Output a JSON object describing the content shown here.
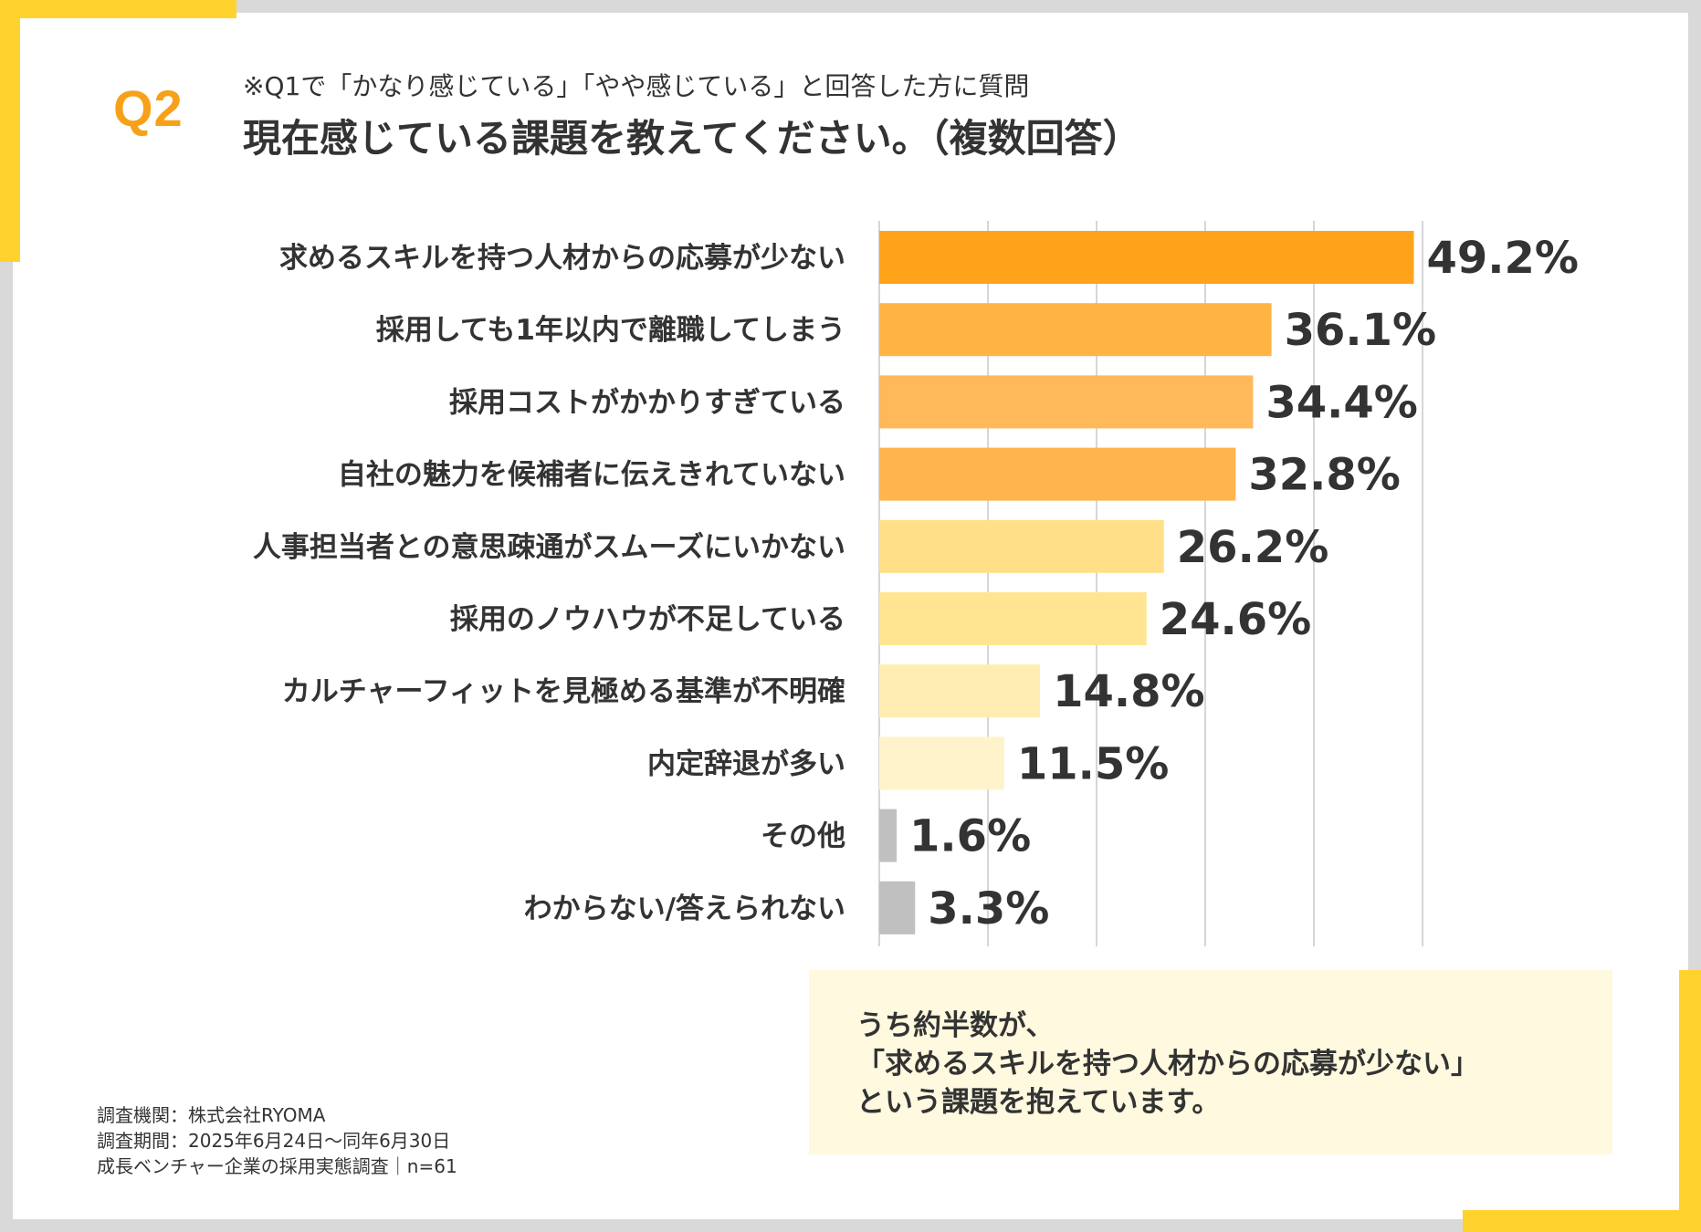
{
  "header": {
    "q_label": "Q2",
    "note": "※Q1で「かなり感じている」「やや感じている」と回答した方に質問",
    "title": "現在感じている課題を教えてください。（複数回答）"
  },
  "colors": {
    "accent_yellow": "#ffd22e",
    "q_orange": "#f7a11a",
    "callout_bg": "#fff9df",
    "grid": "#d6d6d6"
  },
  "chart_data": {
    "type": "bar",
    "orientation": "horizontal",
    "title": "現在感じている課題を教えてください。（複数回答）",
    "categories": [
      "求めるスキルを持つ人材からの応募が少ない",
      "採用しても1年以内で離職してしまう",
      "採用コストがかかりすぎている",
      "自社の魅力を候補者に伝えきれていない",
      "人事担当者との意思疎通がスムーズにいかない",
      "採用のノウハウが不足している",
      "カルチャーフィットを見極める基準が不明確",
      "内定辞退が多い",
      "その他",
      "わからない/答えられない"
    ],
    "values": [
      49.2,
      36.1,
      34.4,
      32.8,
      26.2,
      24.6,
      14.8,
      11.5,
      1.6,
      3.3
    ],
    "value_labels": [
      "49.2%",
      "36.1%",
      "34.4%",
      "32.8%",
      "26.2%",
      "24.6%",
      "14.8%",
      "11.5%",
      "1.6%",
      "3.3%"
    ],
    "bar_colors": [
      "#ffa41a",
      "#ffb444",
      "#ffb85a",
      "#ffb44e",
      "#ffe089",
      "#ffe492",
      "#ffedb2",
      "#fff3cb",
      "#c0c0c0",
      "#c0c0c0"
    ],
    "xlim": [
      0,
      50
    ],
    "gridlines": [
      0,
      10,
      20,
      30,
      40,
      50
    ],
    "grid": true,
    "xlabel": "",
    "ylabel": "",
    "unit": "%"
  },
  "callout": {
    "line1": "うち約半数が、",
    "line2": "「求めるスキルを持つ人材からの応募が少ない」",
    "line3": "という課題を抱えています。"
  },
  "source": {
    "line1": "調査機関：株式会社RYOMA",
    "line2": "調査期間：2025年6月24日～同年6月30日",
    "line3": "成長ベンチャー企業の採用実態調査｜n=61"
  }
}
